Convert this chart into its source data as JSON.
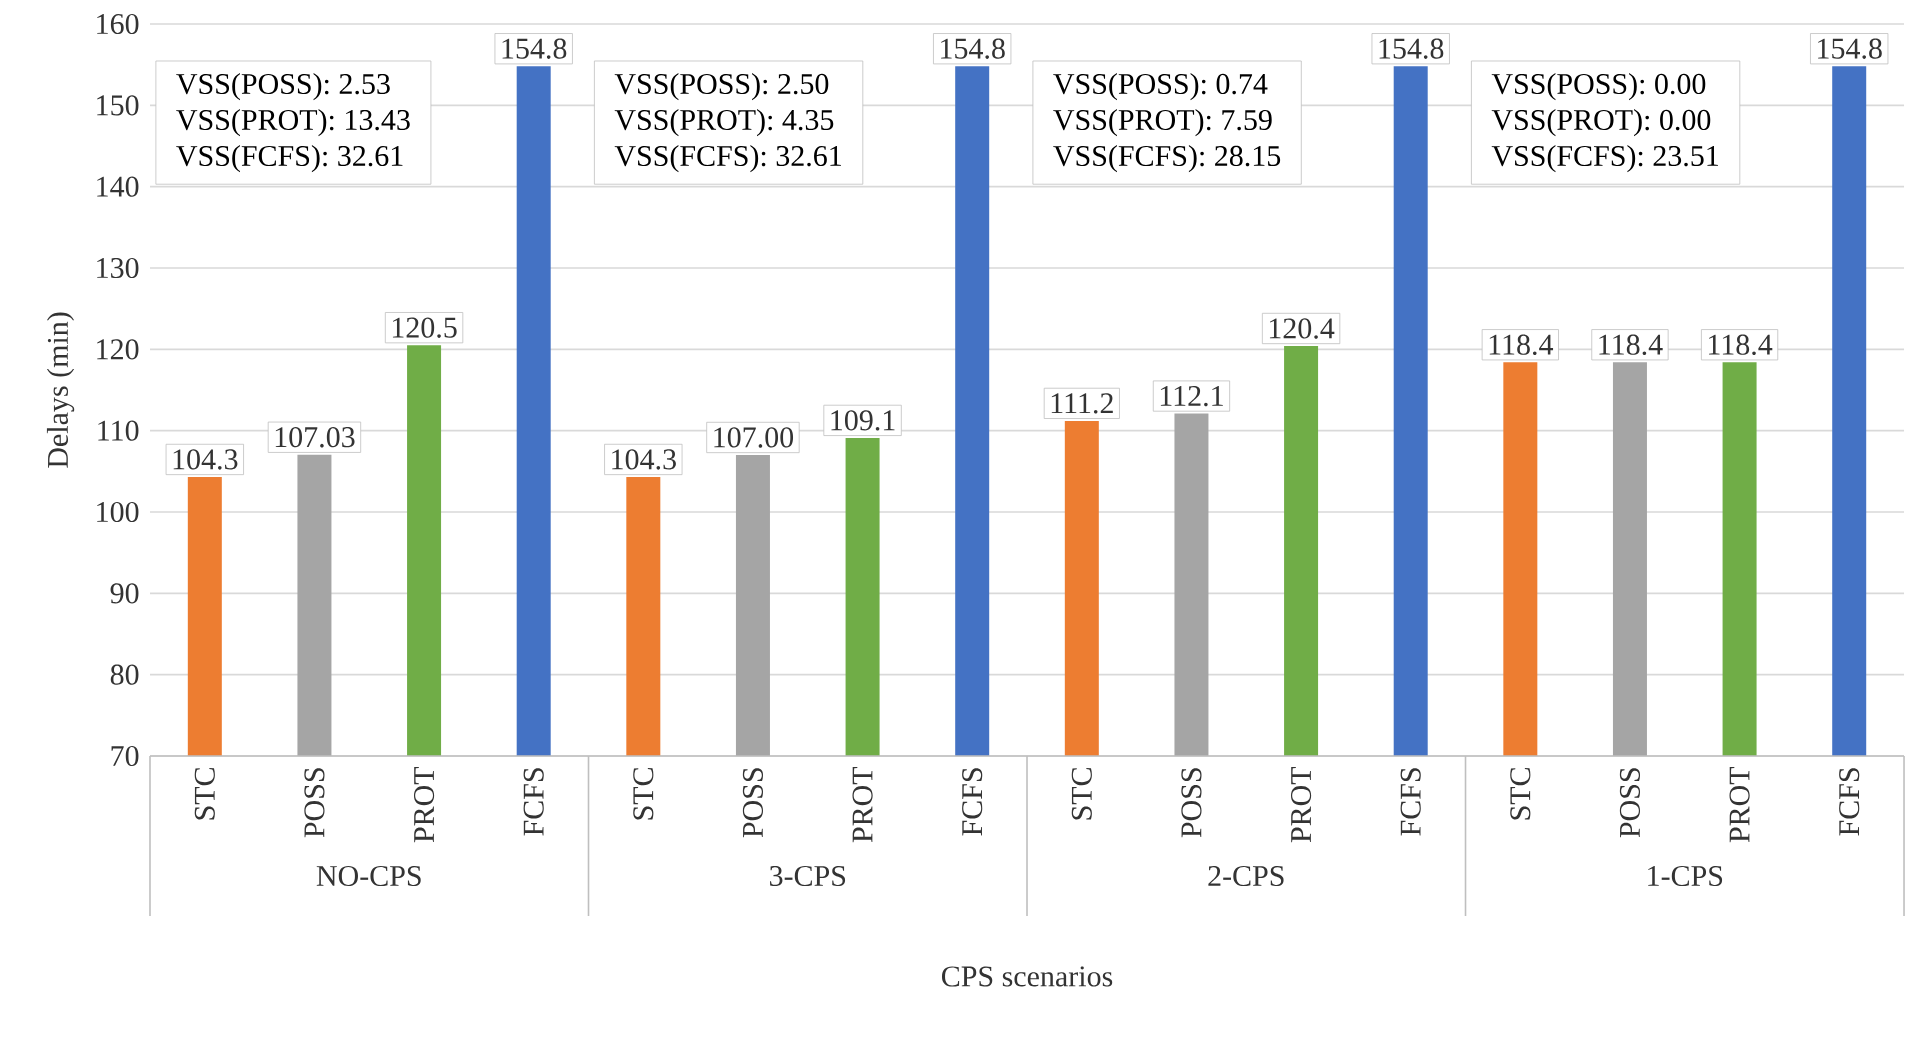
{
  "chart_data": {
    "type": "bar",
    "xlabel": "CPS scenarios",
    "ylabel": "Delays (min)",
    "categories": [
      "STC",
      "POSS",
      "PROT",
      "FCFS",
      "STC",
      "POSS",
      "PROT",
      "FCFS",
      "STC",
      "POSS",
      "PROT",
      "FCFS",
      "STC",
      "POSS",
      "PROT",
      "FCFS"
    ],
    "values": [
      104.3,
      107.03,
      120.5,
      154.8,
      104.3,
      107.0,
      109.1,
      154.8,
      111.2,
      112.1,
      120.4,
      154.8,
      118.4,
      118.4,
      118.4,
      154.8
    ],
    "value_labels": [
      "104.3",
      "107.03",
      "120.5",
      "154.8",
      "104.3",
      "107.00",
      "109.1",
      "154.8",
      "111.2",
      "112.1",
      "120.4",
      "154.8",
      "118.4",
      "118.4",
      "118.4",
      "154.8"
    ],
    "colors": [
      "#ed7d31",
      "#a5a5a5",
      "#70ad47",
      "#4472c4",
      "#ed7d31",
      "#a5a5a5",
      "#70ad47",
      "#4472c4",
      "#ed7d31",
      "#a5a5a5",
      "#70ad47",
      "#4472c4",
      "#ed7d31",
      "#a5a5a5",
      "#70ad47",
      "#4472c4"
    ],
    "annotations": [
      "VSS(POSS): 2.53",
      "VSS(PROT): 13.43",
      "VSS(FCFS): 32.61",
      "VSS(POSS): 2.50",
      "VSS(PROT): 4.35",
      "VSS(FCFS): 32.61",
      "VSS(POSS): 0.74",
      "VSS(PROT): 7.59",
      "VSS(FCFS): 28.15",
      "VSS(POSS): 0.00",
      "VSS(PROT): 0.00",
      "VSS(FCFS): 23.51",
      "NO-CPS",
      "3-CPS",
      "2-CPS",
      "1-CPS"
    ],
    "ylim": [
      70,
      160
    ],
    "yticks": [
      70,
      80,
      90,
      100,
      110,
      120,
      130,
      140,
      150,
      160
    ],
    "grid": "y"
  }
}
